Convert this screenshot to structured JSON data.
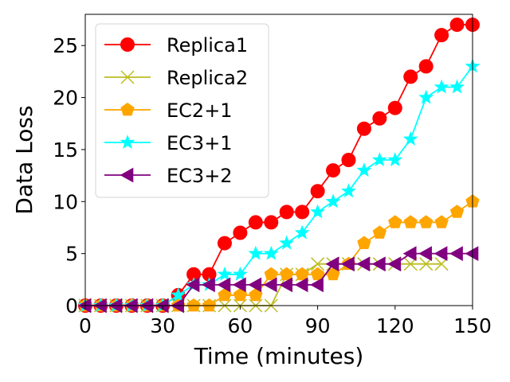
{
  "chart_data": {
    "type": "line",
    "title": "",
    "xlabel": "Time (minutes)",
    "ylabel": "Data Loss",
    "xlim": [
      0,
      150
    ],
    "ylim": [
      0,
      28
    ],
    "xticks": [
      0,
      30,
      60,
      90,
      120,
      150
    ],
    "yticks": [
      0,
      5,
      10,
      15,
      20,
      25
    ],
    "grid": false,
    "legend_position": "top-left",
    "series": [
      {
        "name": "Replica1",
        "color": "#ff0000",
        "marker": "circle",
        "x": [
          0,
          6,
          12,
          18,
          24,
          30,
          36,
          42,
          48,
          54,
          60,
          66,
          72,
          78,
          84,
          90,
          96,
          102,
          108,
          114,
          120,
          126,
          132,
          138,
          144,
          150
        ],
        "values": [
          0,
          0,
          0,
          0,
          0,
          0,
          1,
          3,
          3,
          6,
          7,
          8,
          8,
          9,
          9,
          11,
          13,
          14,
          17,
          18,
          19,
          22,
          23,
          26,
          27,
          27
        ]
      },
      {
        "name": "Replica2",
        "color": "#bcbd22",
        "marker": "x",
        "x": [
          0,
          6,
          12,
          18,
          24,
          30,
          36,
          42,
          48,
          54,
          60,
          66,
          72,
          78,
          84,
          90,
          96,
          102,
          108,
          114,
          120,
          126,
          132,
          138
        ],
        "values": [
          0,
          0,
          0,
          0,
          0,
          0,
          0,
          0,
          0,
          0,
          0,
          0,
          0,
          3,
          3,
          4,
          4,
          4,
          4,
          4,
          4,
          4,
          4,
          4
        ]
      },
      {
        "name": "EC2+1",
        "color": "#ffa500",
        "marker": "pentagon",
        "x": [
          0,
          6,
          12,
          18,
          24,
          30,
          36,
          42,
          48,
          54,
          60,
          66,
          72,
          78,
          84,
          90,
          96,
          102,
          108,
          114,
          120,
          126,
          132,
          138,
          144,
          150
        ],
        "values": [
          0,
          0,
          0,
          0,
          0,
          0,
          0,
          0,
          0,
          1,
          1,
          1,
          3,
          3,
          3,
          3,
          3,
          4,
          6,
          7,
          8,
          8,
          8,
          8,
          9,
          10
        ]
      },
      {
        "name": "EC3+1",
        "color": "#00ffff",
        "marker": "star",
        "x": [
          0,
          6,
          12,
          18,
          24,
          30,
          36,
          42,
          48,
          54,
          60,
          66,
          72,
          78,
          84,
          90,
          96,
          102,
          108,
          114,
          120,
          126,
          132,
          138,
          144,
          150
        ],
        "values": [
          0,
          0,
          0,
          0,
          0,
          0,
          1,
          2,
          2,
          3,
          3,
          5,
          5,
          6,
          7,
          9,
          10,
          11,
          13,
          14,
          14,
          16,
          20,
          21,
          21,
          23
        ]
      },
      {
        "name": "EC3+2",
        "color": "#800080",
        "marker": "triangle-left",
        "x": [
          0,
          6,
          12,
          18,
          24,
          30,
          36,
          42,
          48,
          54,
          60,
          66,
          72,
          78,
          84,
          90,
          96,
          102,
          108,
          114,
          120,
          126,
          132,
          138,
          144,
          150
        ],
        "values": [
          0,
          0,
          0,
          0,
          0,
          0,
          0,
          2,
          2,
          2,
          2,
          2,
          2,
          2,
          2,
          2,
          4,
          4,
          4,
          4,
          4,
          5,
          5,
          5,
          5,
          5
        ]
      }
    ]
  }
}
